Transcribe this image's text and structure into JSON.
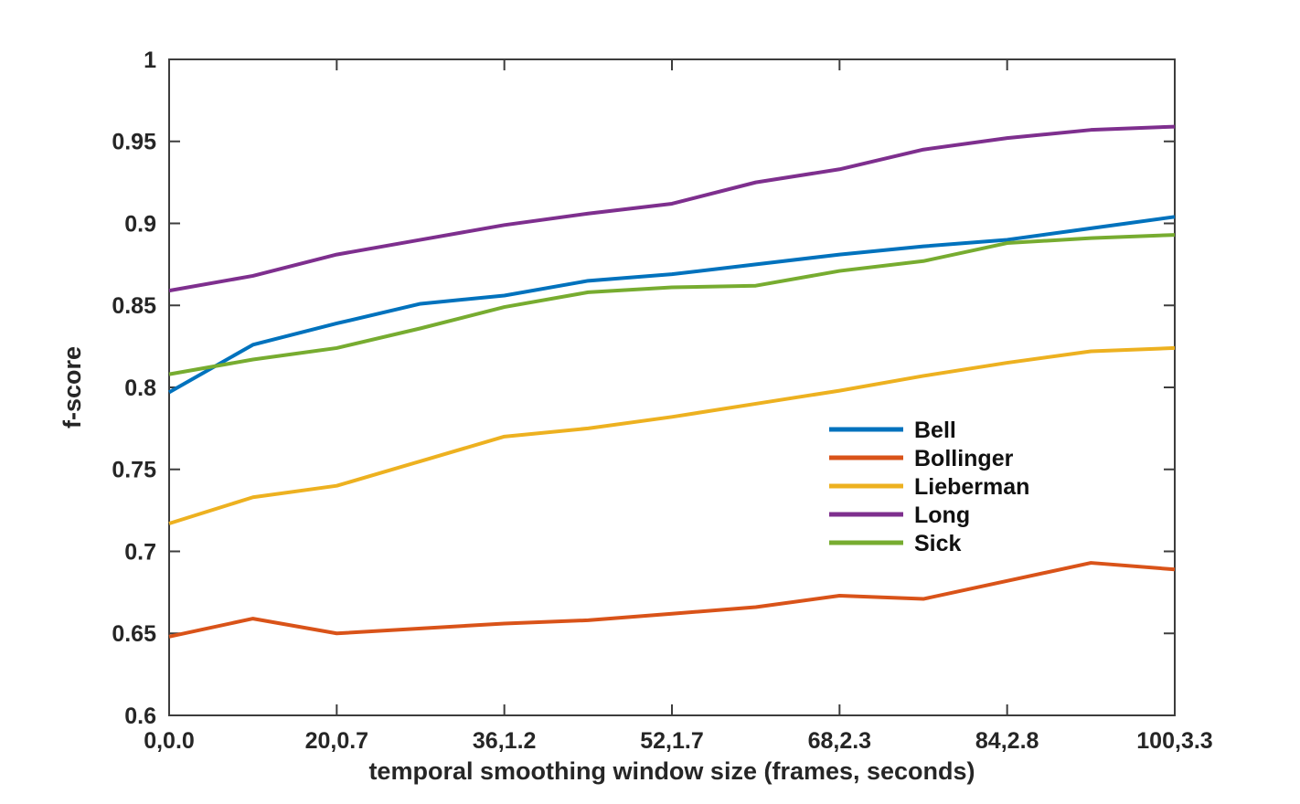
{
  "figure": {
    "background": "#ffffff",
    "axis_color": "#3d3d3d",
    "tick_label_color": "#262626"
  },
  "chart_data": {
    "type": "line",
    "title": "",
    "xlabel": "temporal smoothing window size (frames, seconds)",
    "ylabel": "f-score",
    "ylim": [
      0.6,
      1.0
    ],
    "ytick_values": [
      0.6,
      0.65,
      0.7,
      0.75,
      0.8,
      0.85,
      0.9,
      0.95,
      1.0
    ],
    "ytick_labels": [
      "0.6",
      "0.65",
      "0.7",
      "0.75",
      "0.8",
      "0.85",
      "0.9",
      "0.95",
      "1"
    ],
    "xtick_labels": [
      "0,0.0",
      "20,0.7",
      "36,1.2",
      "52,1.7",
      "68,2.3",
      "84,2.8",
      "100,3.3"
    ],
    "xtick_sample_indices": [
      0,
      2,
      4,
      6,
      8,
      10,
      12
    ],
    "grid": false,
    "box": true,
    "tick_direction": "in",
    "legend_position": "inside-right-center",
    "legend_has_border": false,
    "series": [
      {
        "name": "Bell",
        "color": "#0072BD",
        "values": [
          0.797,
          0.826,
          0.839,
          0.851,
          0.856,
          0.865,
          0.869,
          0.875,
          0.881,
          0.886,
          0.89,
          0.897,
          0.904
        ]
      },
      {
        "name": "Bollinger",
        "color": "#D95319",
        "values": [
          0.648,
          0.659,
          0.65,
          0.653,
          0.656,
          0.658,
          0.662,
          0.666,
          0.673,
          0.671,
          0.682,
          0.693,
          0.689
        ]
      },
      {
        "name": "Lieberman",
        "color": "#EDB120",
        "values": [
          0.717,
          0.733,
          0.74,
          0.755,
          0.77,
          0.775,
          0.782,
          0.79,
          0.798,
          0.807,
          0.815,
          0.822,
          0.824
        ]
      },
      {
        "name": "Long",
        "color": "#7E2F8E",
        "values": [
          0.859,
          0.868,
          0.881,
          0.89,
          0.899,
          0.906,
          0.912,
          0.925,
          0.933,
          0.945,
          0.952,
          0.957,
          0.959
        ]
      },
      {
        "name": "Sick",
        "color": "#77AC30",
        "values": [
          0.808,
          0.817,
          0.824,
          0.836,
          0.849,
          0.858,
          0.861,
          0.862,
          0.871,
          0.877,
          0.888,
          0.891,
          0.893
        ]
      }
    ]
  }
}
